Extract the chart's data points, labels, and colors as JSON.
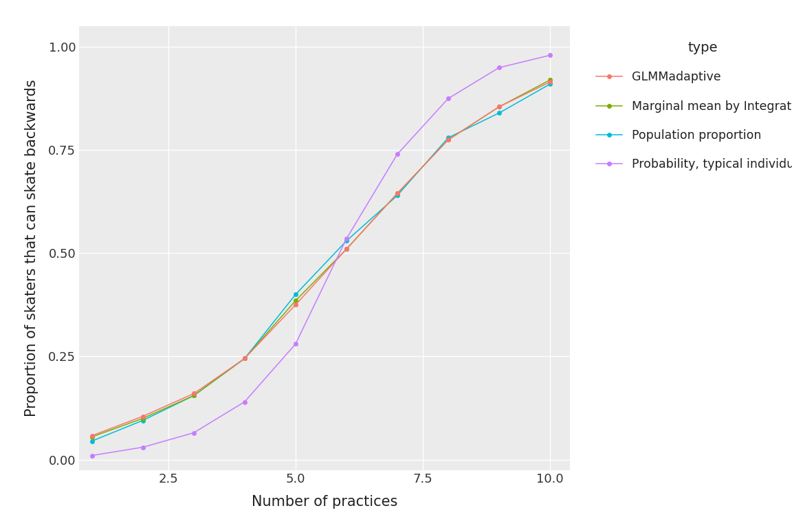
{
  "x": [
    1,
    2,
    3,
    4,
    5,
    6,
    7,
    8,
    9,
    10
  ],
  "glmm_adaptive": [
    0.058,
    0.105,
    0.16,
    0.245,
    0.375,
    0.51,
    0.645,
    0.775,
    0.855,
    0.915
  ],
  "marginal_integration": [
    0.055,
    0.1,
    0.155,
    0.245,
    0.385,
    0.51,
    0.645,
    0.775,
    0.855,
    0.92
  ],
  "population_proportion": [
    0.045,
    0.095,
    0.155,
    0.245,
    0.4,
    0.53,
    0.64,
    0.78,
    0.84,
    0.91
  ],
  "typical_individual": [
    0.01,
    0.03,
    0.065,
    0.14,
    0.28,
    0.535,
    0.74,
    0.875,
    0.95,
    0.98
  ],
  "colors": {
    "glmm_adaptive": "#F8766D",
    "marginal_integration": "#7CAE00",
    "population_proportion": "#00BCD8",
    "typical_individual": "#C77CFF"
  },
  "xlabel": "Number of practices",
  "ylabel": "Proportion of skaters that can skate backwards",
  "legend_title": "type",
  "legend_labels": [
    "GLMMadaptive",
    "Marginal mean by Integration",
    "Population proportion",
    "Probability, typical individual"
  ],
  "xlim": [
    0.75,
    10.4
  ],
  "ylim": [
    -0.025,
    1.05
  ],
  "xticks": [
    2.5,
    5.0,
    7.5,
    10.0
  ],
  "yticks": [
    0.0,
    0.25,
    0.5,
    0.75,
    1.0
  ],
  "panel_bg": "#EBEBEB",
  "fig_bg": "#FFFFFF",
  "grid_color": "#FFFFFF",
  "marker_size": 5,
  "line_width": 1.1
}
